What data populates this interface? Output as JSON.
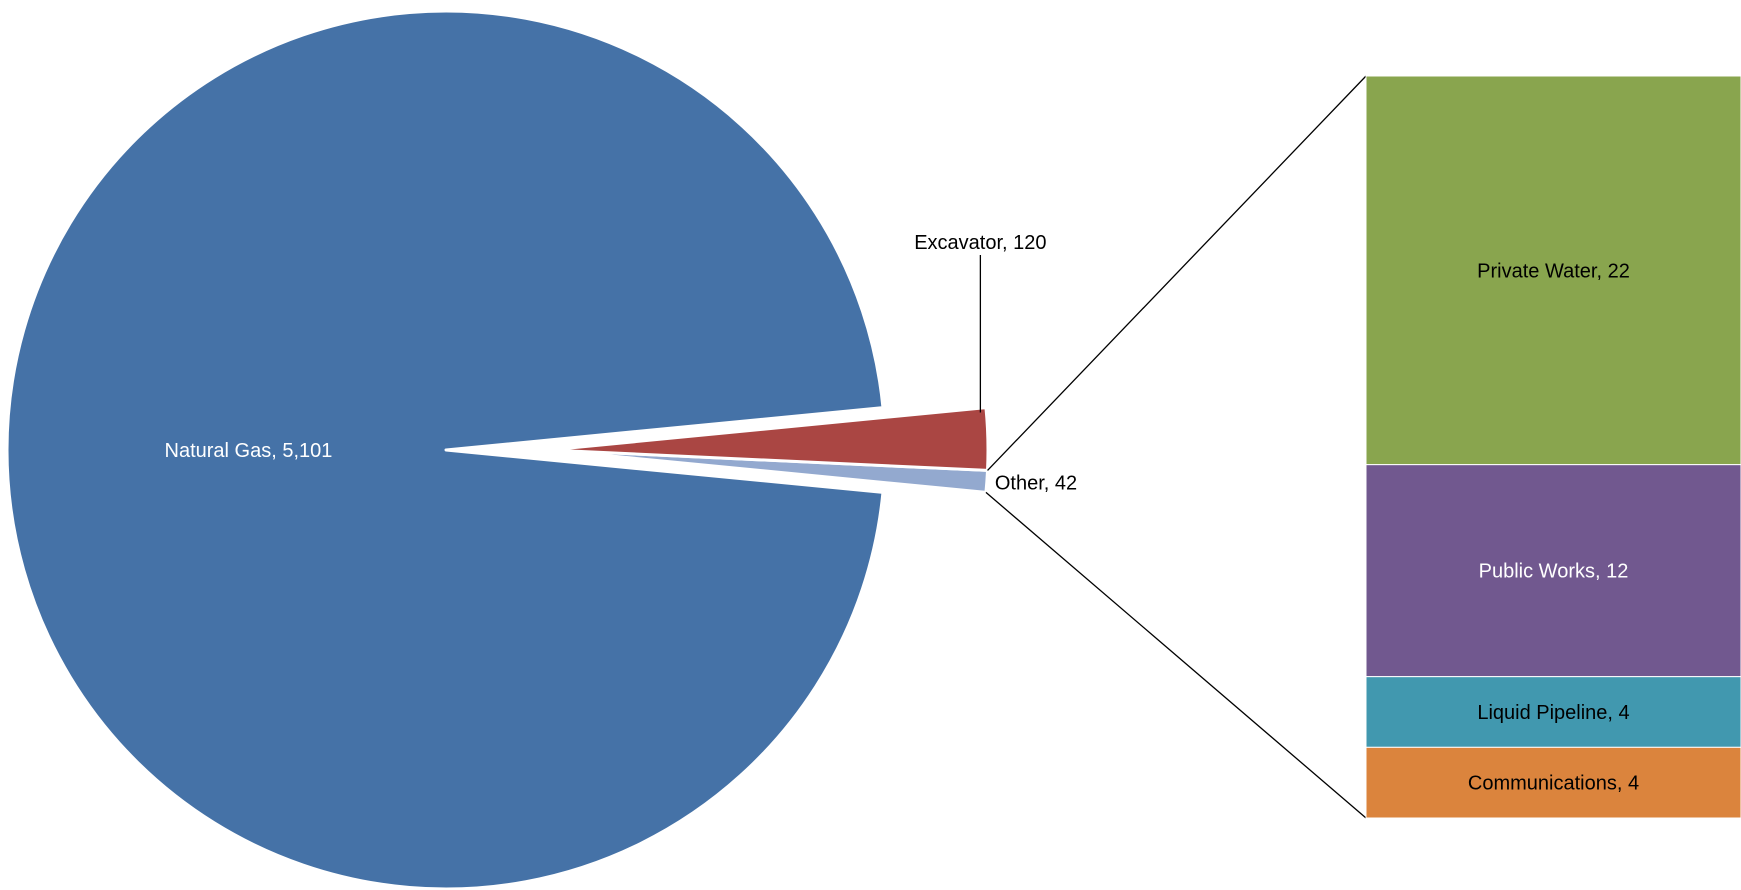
{
  "chart_data": {
    "type": "pie",
    "subtype": "bar-of-pie",
    "slices": [
      {
        "label": "Natural Gas",
        "value": 5101,
        "display": "5,101",
        "color": "#4572A7",
        "label_color": "#ffffff"
      },
      {
        "label": "Excavator",
        "value": 120,
        "display": "120",
        "color": "#AA4643",
        "label_color": "#000000"
      },
      {
        "label": "Other",
        "value": 42,
        "display": "42",
        "color": "#93A9CF",
        "label_color": "#000000"
      }
    ],
    "breakdown": {
      "of": "Other",
      "items": [
        {
          "label": "Private Water",
          "value": 22,
          "display": "22",
          "color": "#89A54E",
          "label_color": "#000000"
        },
        {
          "label": "Public Works",
          "value": 12,
          "display": "12",
          "color": "#71588F",
          "label_color": "#ffffff"
        },
        {
          "label": "Liquid Pipeline",
          "value": 4,
          "display": "4",
          "color": "#4198AF",
          "label_color": "#000000"
        },
        {
          "label": "Communications",
          "value": 4,
          "display": "4",
          "color": "#DB843D",
          "label_color": "#000000"
        }
      ]
    },
    "title": "",
    "legend": "none",
    "data_labels": "category, value"
  }
}
